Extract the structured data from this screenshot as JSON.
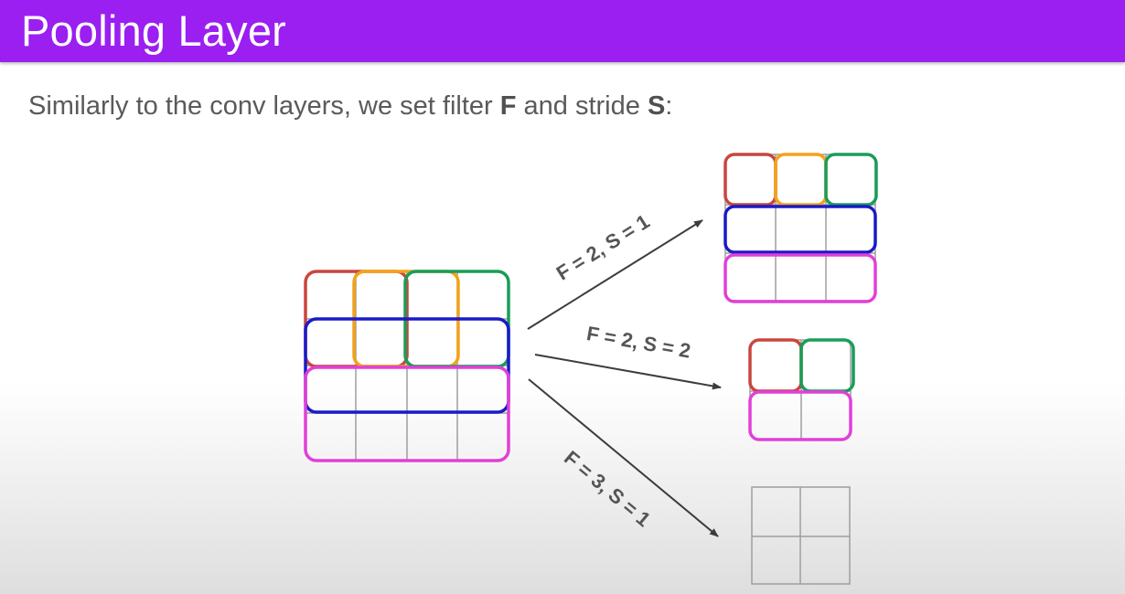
{
  "slide": {
    "title": "Pooling Layer",
    "intro_prefix": "Similarly to the conv layers, we set filter ",
    "intro_filter_letter": "F",
    "intro_middle": " and stride ",
    "intro_stride_letter": "S",
    "intro_suffix": ":"
  },
  "colors": {
    "header": "#9a1ff0",
    "red": "#c9463d",
    "orange": "#f4a21a",
    "green": "#199d58",
    "blue": "#1a1ac8",
    "magenta": "#e040d8",
    "grid": "#9e9e9e",
    "arrow": "#3c3c3c"
  },
  "diagram": {
    "input_grid": "4x4",
    "arrows": [
      {
        "label": "F = 2, S = 1",
        "output_grid": "3x3"
      },
      {
        "label": "F = 2, S = 2",
        "output_grid": "2x2"
      },
      {
        "label": "F = 3, S = 1",
        "output_grid": "2x2"
      }
    ]
  }
}
